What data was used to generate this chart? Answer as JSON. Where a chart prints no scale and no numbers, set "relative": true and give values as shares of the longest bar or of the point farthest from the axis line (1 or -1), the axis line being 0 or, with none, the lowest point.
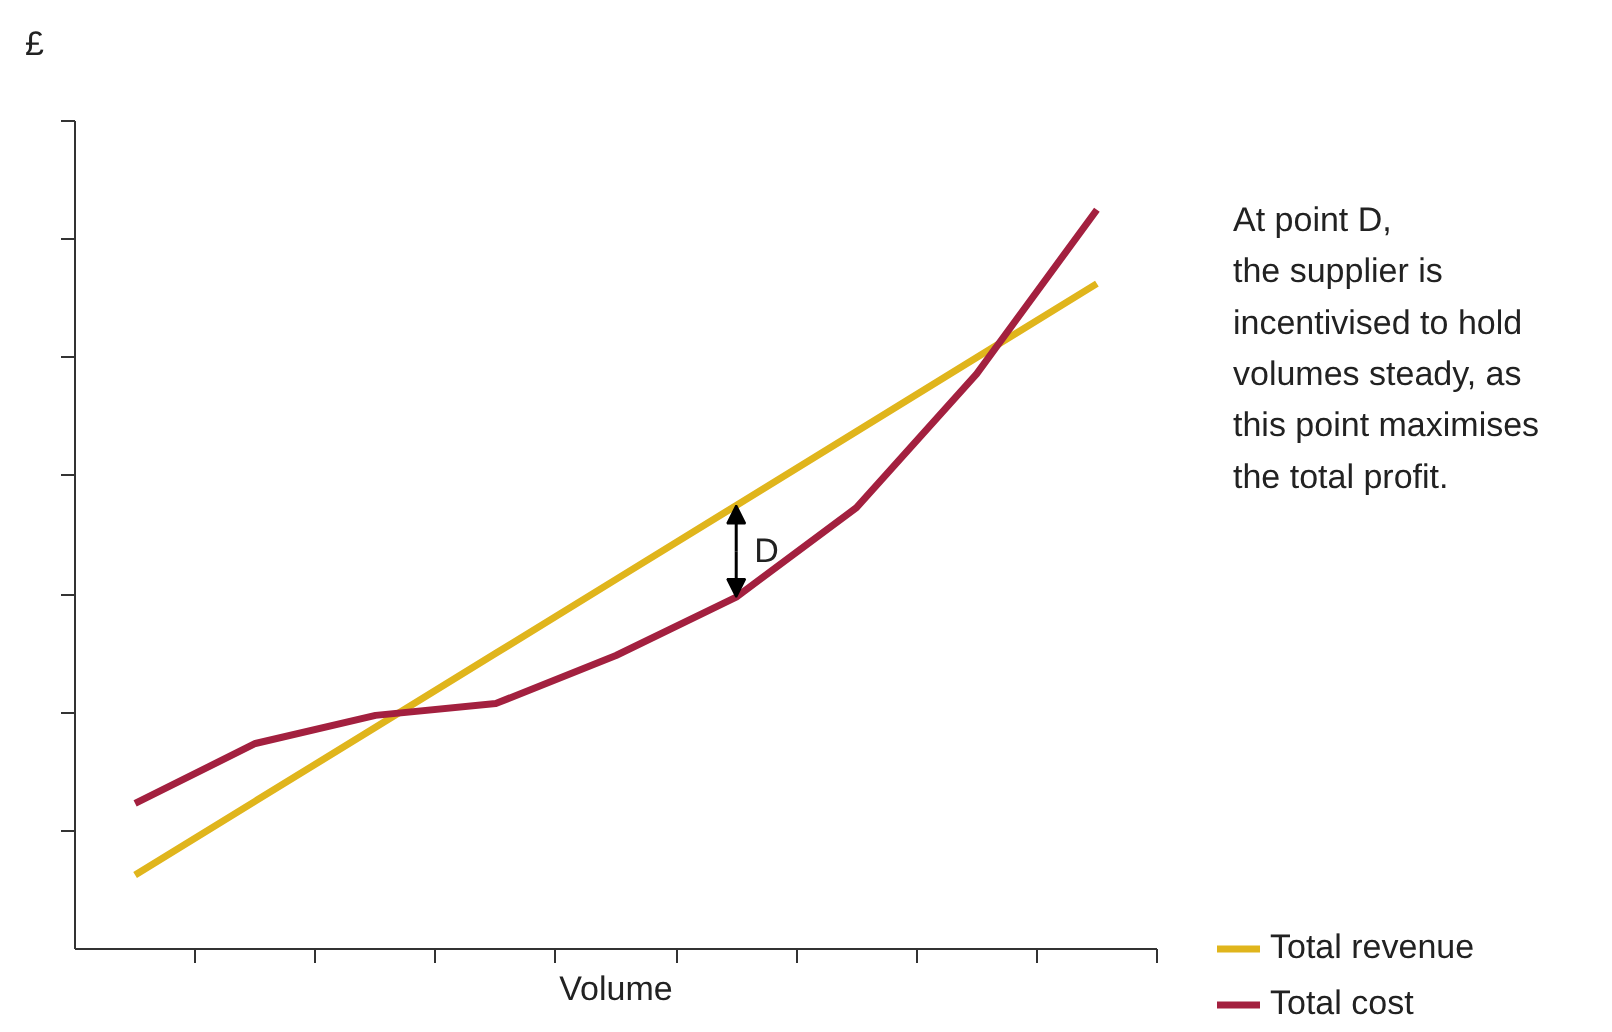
{
  "chart_data": {
    "type": "line",
    "relative": true,
    "ylabel": "£",
    "xlabel": "Volume",
    "categories": [
      null,
      null,
      null,
      null,
      null,
      null,
      null,
      null,
      null
    ],
    "series": [
      {
        "name": "Total revenue",
        "color": "#e0b51c",
        "values": [
          0.1,
          0.2,
          0.3,
          0.4,
          0.5,
          0.6,
          0.7,
          0.8,
          0.9
        ]
      },
      {
        "name": "Total cost",
        "color": "#a3203f",
        "values": [
          0.197,
          0.278,
          0.316,
          0.332,
          0.397,
          0.476,
          0.597,
          0.778,
          1.0
        ]
      }
    ],
    "annotations": [
      "D",
      "At point D,\nthe supplier is\nincentivised to hold\nvolumes steady, as\nthis point maximises\nthe total profit."
    ],
    "legend": "bottom right",
    "grid": false,
    "marker": "none",
    "line_style": "solid"
  }
}
